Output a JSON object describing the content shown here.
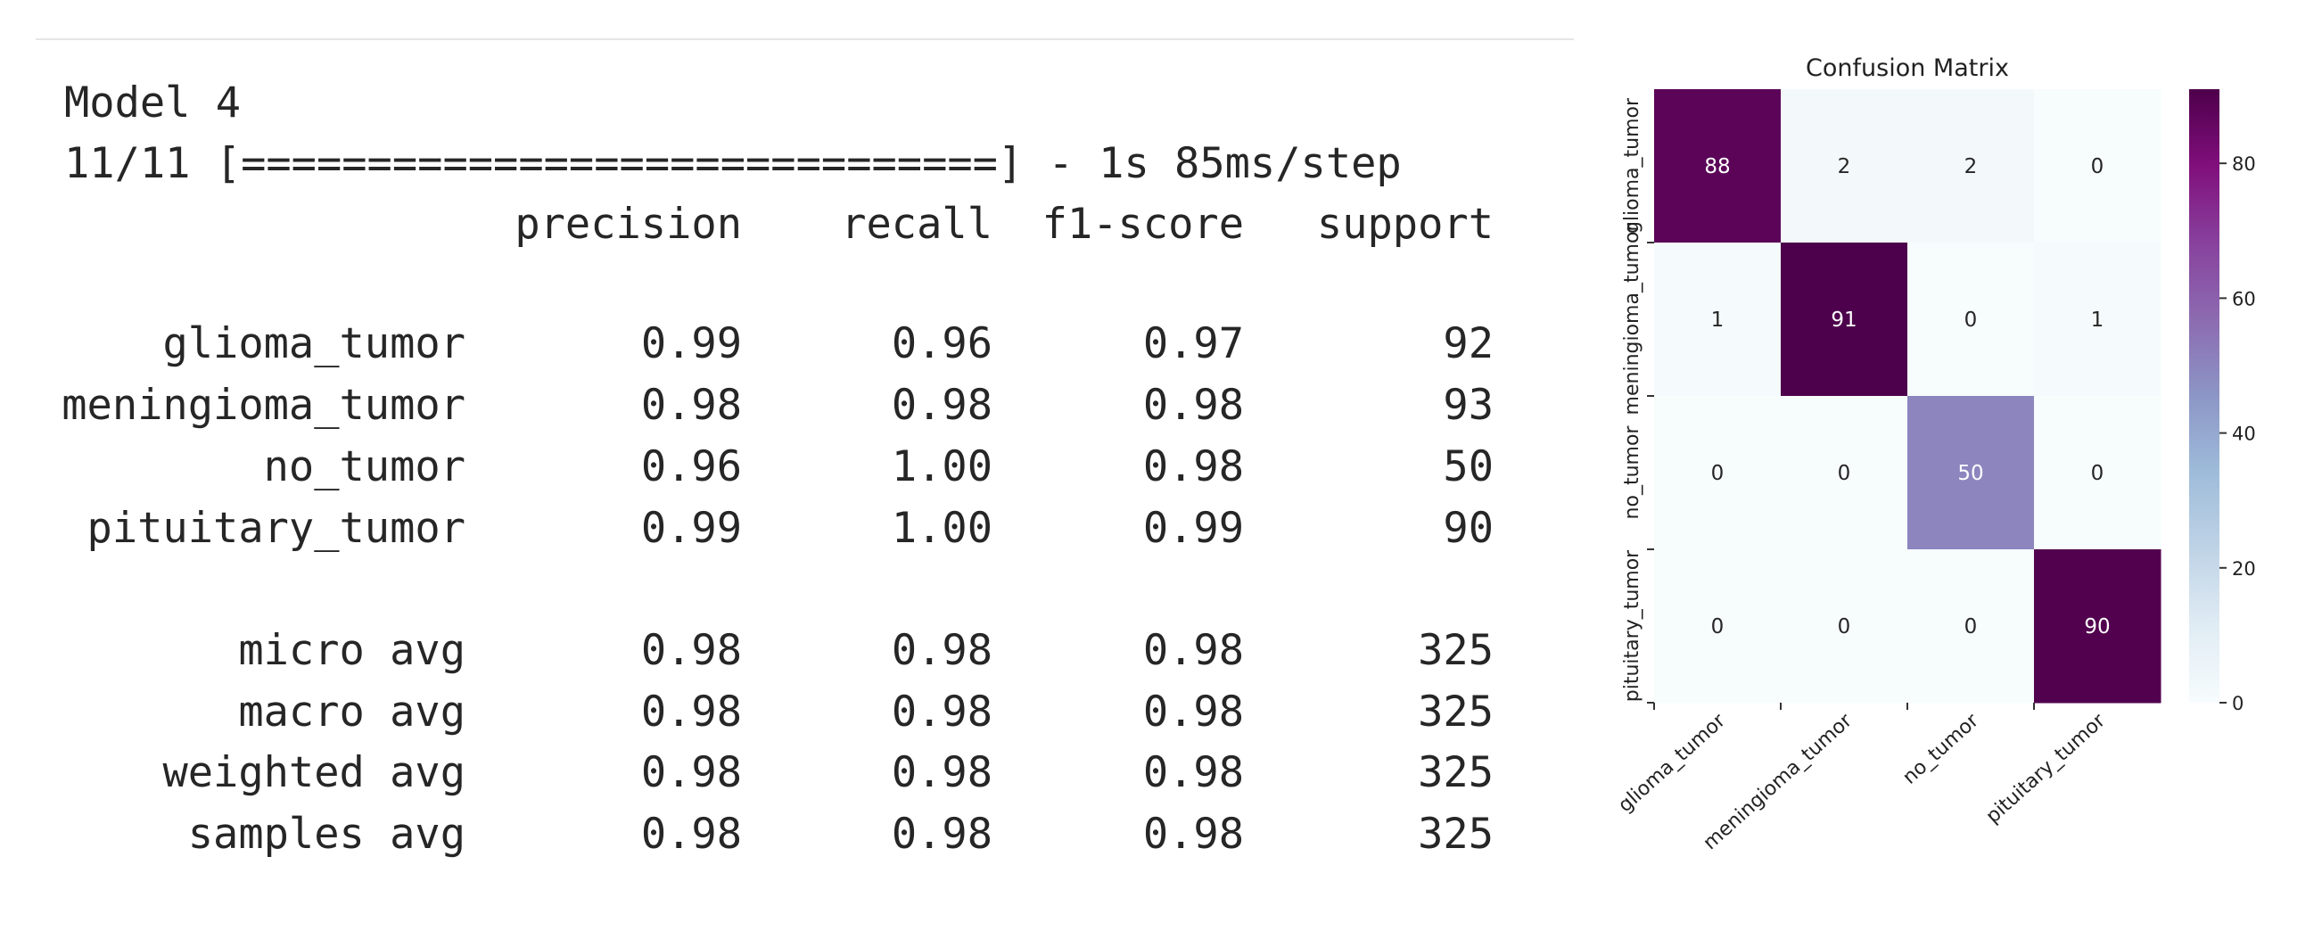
{
  "console": {
    "title": "Model 4",
    "progress_line": "11/11 [==============================] - 1s 85ms/step",
    "headers": [
      "precision",
      "recall",
      "f1-score",
      "support"
    ],
    "class_rows": [
      {
        "label": "glioma_tumor",
        "precision": "0.99",
        "recall": "0.96",
        "f1": "0.97",
        "support": "92"
      },
      {
        "label": "meningioma_tumor",
        "precision": "0.98",
        "recall": "0.98",
        "f1": "0.98",
        "support": "93"
      },
      {
        "label": "no_tumor",
        "precision": "0.96",
        "recall": "1.00",
        "f1": "0.98",
        "support": "50"
      },
      {
        "label": "pituitary_tumor",
        "precision": "0.99",
        "recall": "1.00",
        "f1": "0.99",
        "support": "90"
      }
    ],
    "avg_rows": [
      {
        "label": "micro avg",
        "precision": "0.98",
        "recall": "0.98",
        "f1": "0.98",
        "support": "325"
      },
      {
        "label": "macro avg",
        "precision": "0.98",
        "recall": "0.98",
        "f1": "0.98",
        "support": "325"
      },
      {
        "label": "weighted avg",
        "precision": "0.98",
        "recall": "0.98",
        "f1": "0.98",
        "support": "325"
      },
      {
        "label": "samples avg",
        "precision": "0.98",
        "recall": "0.98",
        "f1": "0.98",
        "support": "325"
      }
    ]
  },
  "chart_data": {
    "type": "heatmap",
    "title": "Confusion Matrix",
    "row_labels": [
      "glioma_tumor",
      "meningioma_tumor",
      "no_tumor",
      "pituitary_tumor"
    ],
    "col_labels": [
      "glioma_tumor",
      "meningioma_tumor",
      "no_tumor",
      "pituitary_tumor"
    ],
    "values": [
      [
        88,
        2,
        2,
        0
      ],
      [
        1,
        91,
        0,
        1
      ],
      [
        0,
        0,
        50,
        0
      ],
      [
        0,
        0,
        0,
        90
      ]
    ],
    "colorbar": {
      "min": 0,
      "max": 91,
      "ticks": [
        0,
        20,
        40,
        60,
        80
      ]
    },
    "colormap": "BuPu",
    "colormap_stops": [
      "#f7fcfd",
      "#e0ecf4",
      "#bfd3e6",
      "#9ebcda",
      "#8c96c6",
      "#8c6bb1",
      "#88419d",
      "#810f7c",
      "#4d004b"
    ]
  }
}
